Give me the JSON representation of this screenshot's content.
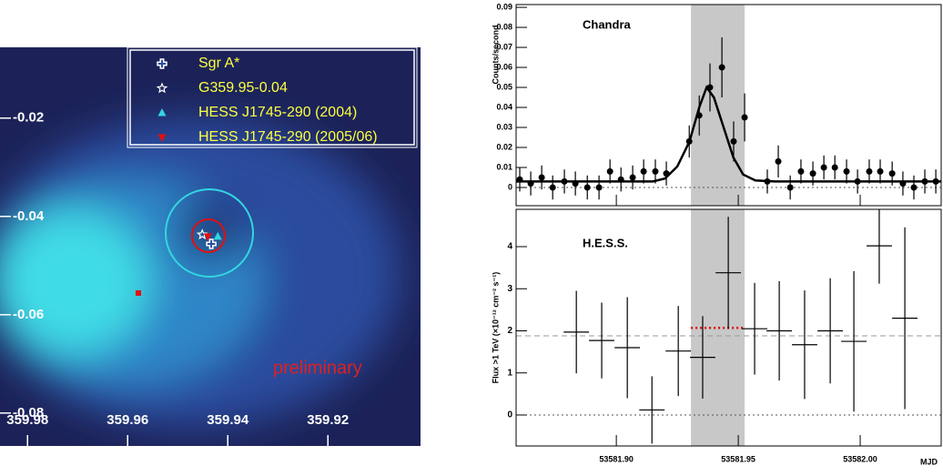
{
  "chart_data": [
    {
      "type": "map",
      "xlim": [
        359.9855,
        359.9015
      ],
      "ylim": [
        -0.0867,
        -0.0056
      ],
      "xticks": [
        359.98,
        359.96,
        359.94,
        359.92
      ],
      "yticks": [
        -0.08,
        -0.06,
        -0.04,
        -0.02
      ],
      "annotation": "preliminary",
      "series": [
        {
          "name": "Sgr A*",
          "marker": "cross",
          "color": "#ffffff",
          "x": [
            359.9433
          ],
          "values": [
            -0.0456
          ]
        },
        {
          "name": "G359.95-0.04",
          "marker": "star",
          "color": "#ffffff",
          "x": [
            359.9451
          ],
          "values": [
            -0.0437
          ]
        },
        {
          "name": "HESS J1745-290 (2004)",
          "marker": "triangle-up",
          "color": "#33d6e0",
          "x": [
            359.942
          ],
          "values": [
            -0.0441
          ]
        },
        {
          "name": "HESS J1745-290 (2005/06)",
          "marker": "triangle-down",
          "color": "#e01010",
          "x": [
            359.944
          ],
          "values": [
            -0.0441
          ]
        }
      ]
    },
    {
      "type": "scatter",
      "label": "Chandra",
      "ylabel": "Counts/second",
      "xlim": [
        53581.8589,
        53582.0332
      ],
      "ylim": [
        -0.0091,
        0.0914
      ],
      "yticks": [
        0,
        0.01,
        0.02,
        0.03,
        0.04,
        0.05,
        0.06,
        0.07,
        0.08,
        0.09
      ],
      "band": [
        53581.9306,
        53581.9526
      ],
      "hlines": [
        {
          "value": 0,
          "style": "dotted",
          "color": "#555555"
        }
      ],
      "x": [
        53581.8604,
        53581.8649,
        53581.8694,
        53581.8739,
        53581.8787,
        53581.8832,
        53581.8881,
        53581.8929,
        53581.8974,
        53581.9019,
        53581.9067,
        53581.9112,
        53581.916,
        53581.9205,
        53581.9299,
        53581.934,
        53581.9384,
        53581.9433,
        53581.9481,
        53581.9526,
        53581.9619,
        53581.9664,
        53581.9713,
        53581.9757,
        53581.9806,
        53581.9851,
        53581.9896,
        53581.9944,
        53581.9989,
        53582.0037,
        53582.0082,
        53582.0131,
        53582.0175,
        53582.022,
        53582.0265,
        53582.031
      ],
      "values": [
        0.004,
        0.002,
        0.005,
        0,
        0.003,
        0.002,
        0,
        0,
        0.008,
        0.004,
        0.005,
        0.008,
        0.008,
        0.007,
        0.023,
        0.036,
        0.05,
        0.06,
        0.023,
        0.035,
        0.003,
        0.013,
        0,
        0.008,
        0.007,
        0.01,
        0.01,
        0.008,
        0.003,
        0.008,
        0.008,
        0.007,
        0.002,
        0,
        0.003,
        0.003
      ],
      "errors": [
        0.006,
        0.006,
        0.006,
        0.006,
        0.006,
        0.006,
        0.006,
        0.006,
        0.006,
        0.006,
        0.006,
        0.006,
        0.006,
        0.006,
        0.008,
        0.01,
        0.012,
        0.015,
        0.01,
        0.012,
        0.006,
        0.008,
        0.006,
        0.006,
        0.006,
        0.006,
        0.006,
        0.006,
        0.006,
        0.006,
        0.006,
        0.006,
        0.006,
        0.006,
        0.006,
        0.006
      ],
      "curve": {
        "x": [
          53581.8589,
          53581.915,
          53581.92,
          53581.925,
          53581.93,
          53581.934,
          53581.937,
          53581.94,
          53581.944,
          53581.948,
          53581.952,
          53581.957,
          53581.965,
          53582.0332
        ],
        "values": [
          0.003,
          0.003,
          0.0045,
          0.0105,
          0.023,
          0.04,
          0.05,
          0.045,
          0.03,
          0.015,
          0.0065,
          0.0035,
          0.003,
          0.003
        ]
      }
    },
    {
      "type": "scatter",
      "label": "H.E.S.S.",
      "ylabel": "Flux >1 TeV (×10⁻¹² cm⁻² s⁻¹)",
      "xlabel": "MJD",
      "xlim": [
        53581.8589,
        53582.0332
      ],
      "ylim": [
        -0.736,
        4.887
      ],
      "xticks": [
        {
          "value": 53581.9,
          "label": "53581.90"
        },
        53581.95,
        {
          "value": 53582,
          "label": "53582.00"
        }
      ],
      "yticks": [
        0,
        1,
        2,
        3,
        4
      ],
      "band": [
        53581.9306,
        53581.9526
      ],
      "hlines": [
        {
          "value": 0,
          "style": "dotted",
          "color": "#555555"
        },
        {
          "value": 1.88,
          "style": "dashed",
          "color": "#999999"
        },
        {
          "value": 2.07,
          "style": "dotted",
          "color": "#e00000",
          "xrange": [
            53581.9306,
            53581.9526
          ]
        }
      ],
      "x": [
        53581.8836,
        53581.894,
        53581.9045,
        53581.9146,
        53581.9254,
        53581.9354,
        53581.9459,
        53581.9567,
        53581.9668,
        53581.9772,
        53581.9877,
        53581.9974,
        53582.0078,
        53582.0183
      ],
      "xerr": [
        0.0052,
        0.0052,
        0.0052,
        0.0052,
        0.0052,
        0.0052,
        0.0052,
        0.0052,
        0.0052,
        0.0052,
        0.0052,
        0.0052,
        0.0052,
        0.0052
      ],
      "values": [
        1.97,
        1.77,
        1.6,
        0.12,
        1.52,
        1.37,
        3.38,
        2.05,
        2.0,
        1.67,
        2.0,
        1.75,
        4.02,
        2.3
      ],
      "errors": [
        0.98,
        0.9,
        1.2,
        0.8,
        1.07,
        0.98,
        1.33,
        1.09,
        1.18,
        1.29,
        1.25,
        1.67,
        0.9,
        2.16
      ]
    }
  ]
}
